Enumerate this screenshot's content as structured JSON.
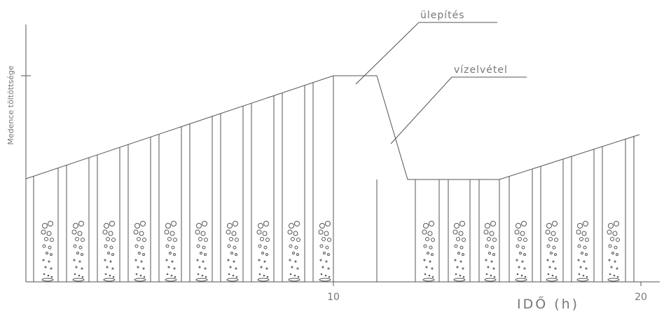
{
  "axes": {
    "y_label": "Medence töltöttsége",
    "x_label": "IDŐ (h)",
    "x_ticks": [
      "10",
      "20"
    ]
  },
  "annotations": {
    "settling": "ülepítés",
    "decanting": "vízelvétel"
  }
}
